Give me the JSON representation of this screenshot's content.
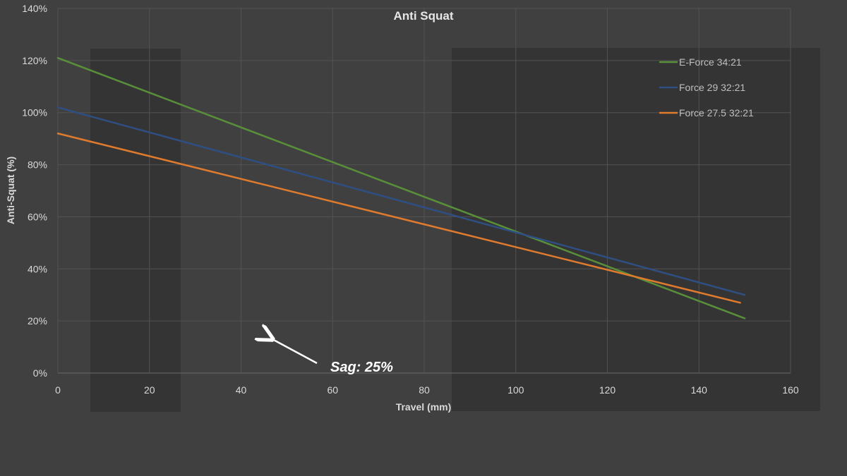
{
  "chart_data": {
    "type": "line",
    "title": "Anti Squat",
    "xlabel": "Travel (mm)",
    "ylabel": "Anti-Squat (%)",
    "xlim": [
      0,
      160
    ],
    "ylim": [
      0,
      140
    ],
    "x_ticks": [
      "0",
      "20",
      "40",
      "60",
      "80",
      "100",
      "120",
      "140",
      "160"
    ],
    "y_ticks": [
      "0%",
      "20%",
      "40%",
      "60%",
      "80%",
      "100%",
      "120%",
      "140%"
    ],
    "grid": true,
    "legend_position": "top-right",
    "series": [
      {
        "name": "E-Force 34:21",
        "color": "#5a8f3a",
        "x": [
          0,
          150
        ],
        "y": [
          121,
          21
        ]
      },
      {
        "name": "Force 29 32:21",
        "color": "#2f4f82",
        "x": [
          0,
          150
        ],
        "y": [
          102,
          30
        ]
      },
      {
        "name": "Force 27.5 32:21",
        "color": "#e07b2e",
        "x": [
          0,
          149
        ],
        "y": [
          92,
          27
        ]
      }
    ],
    "annotation": {
      "text": "Sag: 25%"
    }
  }
}
